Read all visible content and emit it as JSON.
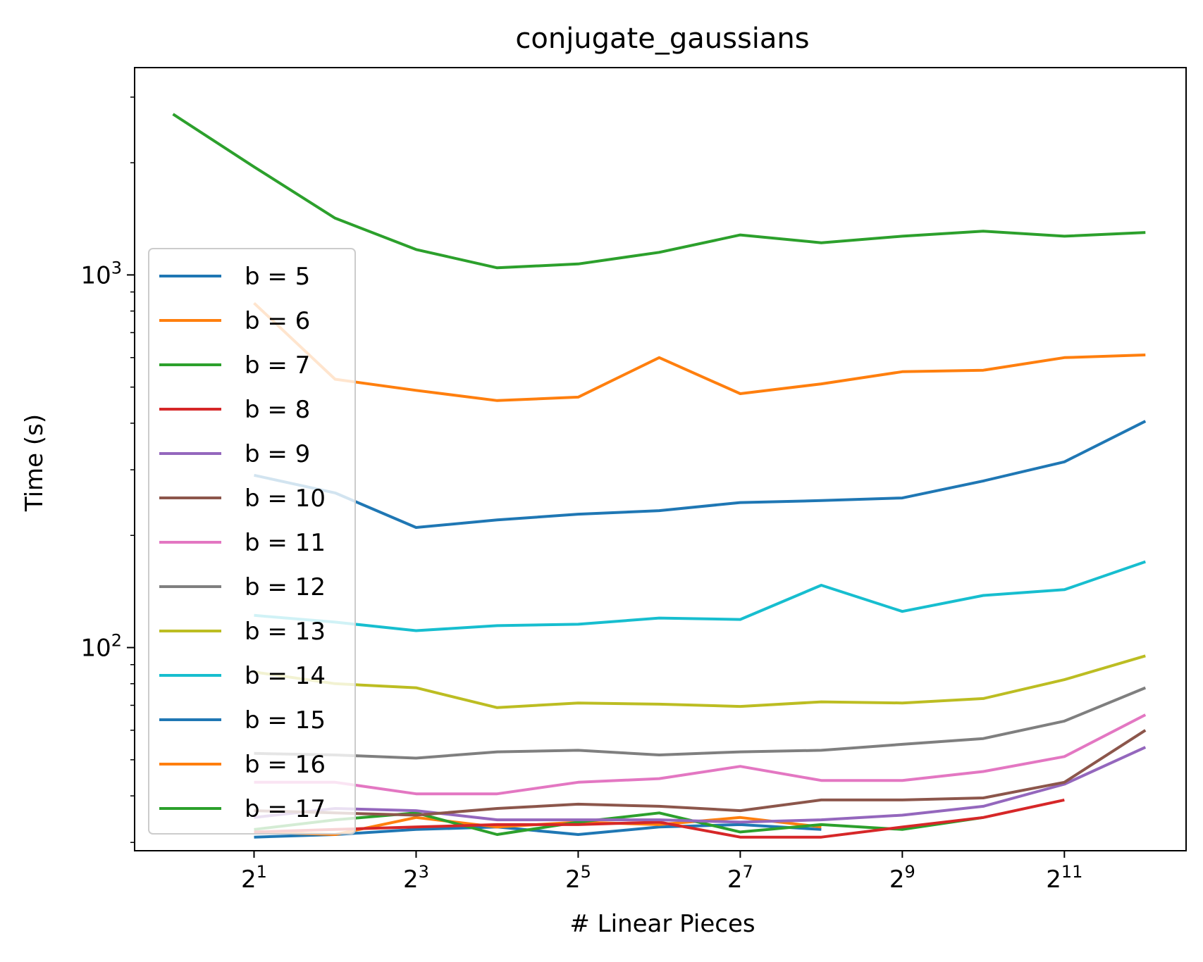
{
  "chart_data": {
    "type": "line",
    "title": "conjugate_gaussians",
    "xlabel": "# Linear Pieces",
    "ylabel": "Time (s)",
    "x_scale": "log2",
    "y_scale": "log10",
    "x": [
      1,
      2,
      4,
      8,
      16,
      32,
      64,
      128,
      256,
      512,
      1024,
      2048,
      4096
    ],
    "x_ticks": [
      {
        "value": 2,
        "base": "2",
        "exp": "1"
      },
      {
        "value": 8,
        "base": "2",
        "exp": "3"
      },
      {
        "value": 32,
        "base": "2",
        "exp": "5"
      },
      {
        "value": 128,
        "base": "2",
        "exp": "7"
      },
      {
        "value": 512,
        "base": "2",
        "exp": "9"
      },
      {
        "value": 2048,
        "base": "2",
        "exp": "11"
      }
    ],
    "y_ticks": [
      {
        "value": 100,
        "base": "10",
        "exp": "2"
      },
      {
        "value": 1000,
        "base": "10",
        "exp": "3"
      }
    ],
    "xlim": [
      0.72,
      5800
    ],
    "ylim": [
      28.5,
      3600
    ],
    "grid": false,
    "legend_position": "lower-left",
    "series": [
      {
        "name": "b = 5",
        "color": "#1f77b4",
        "values": [
          null,
          31,
          31.5,
          32.5,
          33,
          31.5,
          33,
          33.5,
          32.5,
          null,
          null,
          null,
          null
        ]
      },
      {
        "name": "b = 6",
        "color": "#ff7f0e",
        "values": [
          null,
          32,
          31.5,
          35,
          33,
          34,
          33.5,
          35,
          33,
          null,
          null,
          null,
          null
        ]
      },
      {
        "name": "b = 7",
        "color": "#2ca02c",
        "values": [
          null,
          32.5,
          34.5,
          36,
          31.5,
          34,
          36,
          32,
          33.5,
          32.5,
          35,
          null,
          null
        ]
      },
      {
        "name": "b = 8",
        "color": "#d62728",
        "values": [
          null,
          32,
          32.5,
          33,
          33.5,
          33.5,
          34,
          31,
          31,
          33,
          35,
          39,
          null
        ]
      },
      {
        "name": "b = 9",
        "color": "#9467bd",
        "values": [
          null,
          35,
          37,
          36.5,
          34.5,
          34.5,
          34.5,
          34,
          34.5,
          35.5,
          37.5,
          43,
          54
        ]
      },
      {
        "name": "b = 10",
        "color": "#8c564b",
        "values": [
          null,
          36.5,
          36,
          35.5,
          37,
          38,
          37.5,
          36.5,
          39,
          39,
          39.5,
          43.5,
          60
        ]
      },
      {
        "name": "b = 11",
        "color": "#e377c2",
        "values": [
          null,
          43.5,
          43.5,
          40.5,
          40.5,
          43.5,
          44.5,
          48,
          44,
          44,
          46.5,
          51,
          66
        ]
      },
      {
        "name": "b = 12",
        "color": "#7f7f7f",
        "values": [
          null,
          52,
          51.5,
          50.5,
          52.5,
          53,
          51.5,
          52.5,
          53,
          55,
          57,
          63.5,
          78
        ]
      },
      {
        "name": "b = 13",
        "color": "#bcbd22",
        "values": [
          null,
          86,
          80,
          78,
          69,
          71,
          70.5,
          69.5,
          71.5,
          71,
          73,
          82,
          95
        ]
      },
      {
        "name": "b = 14",
        "color": "#17becf",
        "values": [
          null,
          122,
          117,
          111,
          114.5,
          115.5,
          120,
          119,
          147,
          125,
          138,
          143,
          170
        ]
      },
      {
        "name": "b = 15",
        "color": "#1f77b4",
        "values": [
          null,
          290,
          260,
          210,
          220,
          228,
          233,
          245,
          248,
          252,
          280,
          315,
          405
        ]
      },
      {
        "name": "b = 16",
        "color": "#ff7f0e",
        "values": [
          null,
          840,
          525,
          490,
          460,
          470,
          600,
          480,
          510,
          550,
          555,
          600,
          610
        ]
      },
      {
        "name": "b = 17",
        "color": "#2ca02c",
        "values": [
          2700,
          1950,
          1420,
          1170,
          1045,
          1070,
          1150,
          1280,
          1220,
          1270,
          1310,
          1270,
          1300
        ]
      }
    ]
  }
}
